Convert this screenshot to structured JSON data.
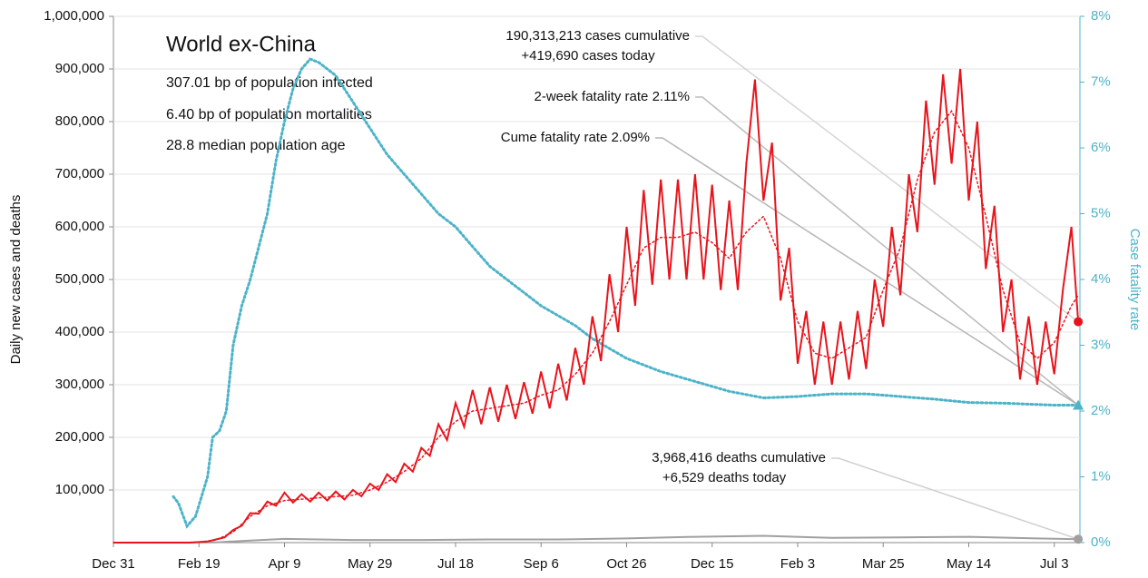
{
  "chart_data": {
    "type": "line",
    "title": "World ex-China",
    "info": [
      "307.01 bp of population infected",
      "6.40 bp of population mortalities",
      "28.8 median population age"
    ],
    "ylabel": "Daily new cases and deaths",
    "y2label": "Case fatality rate",
    "annotations": [
      {
        "lines": [
          "190,313,213 cases cumulative",
          "+419,690 cases today"
        ],
        "target": 0
      },
      {
        "lines": [
          "2-week fatality rate 2.11%"
        ],
        "target": 2
      },
      {
        "lines": [
          "Cume fatality rate 2.09%"
        ],
        "target": 2
      },
      {
        "lines": [
          "3,968,416 deaths cumulative",
          "+6,529 deaths today"
        ],
        "target": 3
      }
    ],
    "xlim": [
      0,
      565
    ],
    "xticks": [
      {
        "value": 0,
        "label": "Dec 31"
      },
      {
        "value": 50,
        "label": "Feb 19"
      },
      {
        "value": 100,
        "label": "Apr 9"
      },
      {
        "value": 150,
        "label": "May 29"
      },
      {
        "value": 200,
        "label": "Jul 18"
      },
      {
        "value": 250,
        "label": "Sep 6"
      },
      {
        "value": 300,
        "label": "Oct 26"
      },
      {
        "value": 350,
        "label": "Dec 15"
      },
      {
        "value": 400,
        "label": "Feb 3"
      },
      {
        "value": 450,
        "label": "Mar 25"
      },
      {
        "value": 500,
        "label": "May 14"
      },
      {
        "value": 550,
        "label": "Jul 3"
      }
    ],
    "ylim": [
      0,
      1000000
    ],
    "yticks": [
      {
        "value": 100000,
        "label": "100,000"
      },
      {
        "value": 200000,
        "label": "200,000"
      },
      {
        "value": 300000,
        "label": "300,000"
      },
      {
        "value": 400000,
        "label": "400,000"
      },
      {
        "value": 500000,
        "label": "500,000"
      },
      {
        "value": 600000,
        "label": "600,000"
      },
      {
        "value": 700000,
        "label": "700,000"
      },
      {
        "value": 800000,
        "label": "800,000"
      },
      {
        "value": 900000,
        "label": "900,000"
      },
      {
        "value": 1000000,
        "label": "1,000,000"
      }
    ],
    "y2lim": [
      0,
      8
    ],
    "y2ticks": [
      {
        "value": 0,
        "label": "0%"
      },
      {
        "value": 1,
        "label": "1%"
      },
      {
        "value": 2,
        "label": "2%"
      },
      {
        "value": 3,
        "label": "3%"
      },
      {
        "value": 4,
        "label": "4%"
      },
      {
        "value": 5,
        "label": "5%"
      },
      {
        "value": 6,
        "label": "6%"
      },
      {
        "value": 7,
        "label": "7%"
      },
      {
        "value": 8,
        "label": "8%"
      }
    ],
    "series": [
      {
        "color": "#e8141c",
        "style": "solid",
        "marker": "circle",
        "x": [
          0,
          5,
          10,
          15,
          20,
          25,
          30,
          35,
          40,
          45,
          50,
          55,
          60,
          65,
          70,
          75,
          80,
          85,
          90,
          95,
          100,
          105,
          110,
          115,
          120,
          125,
          130,
          135,
          140,
          145,
          150,
          155,
          160,
          165,
          170,
          175,
          180,
          185,
          190,
          195,
          200,
          205,
          210,
          215,
          220,
          225,
          230,
          235,
          240,
          245,
          250,
          255,
          260,
          265,
          270,
          275,
          280,
          285,
          290,
          295,
          300,
          305,
          310,
          315,
          320,
          325,
          330,
          335,
          340,
          345,
          350,
          355,
          360,
          365,
          370,
          375,
          380,
          385,
          390,
          395,
          400,
          405,
          410,
          415,
          420,
          425,
          430,
          435,
          440,
          445,
          450,
          455,
          460,
          465,
          470,
          475,
          480,
          485,
          490,
          495,
          500,
          505,
          510,
          515,
          520,
          525,
          530,
          535,
          540,
          545,
          550,
          555,
          560,
          564
        ],
        "values": [
          0,
          0,
          0,
          0,
          0,
          0,
          0,
          0,
          0,
          0,
          1000,
          2000,
          6000,
          10000,
          24000,
          32000,
          56000,
          55000,
          78000,
          70000,
          95000,
          76000,
          92000,
          78000,
          95000,
          80000,
          97000,
          82000,
          100000,
          88000,
          112000,
          100000,
          130000,
          115000,
          150000,
          135000,
          180000,
          165000,
          225000,
          195000,
          265000,
          220000,
          290000,
          225000,
          295000,
          230000,
          300000,
          235000,
          305000,
          245000,
          325000,
          255000,
          340000,
          270000,
          370000,
          300000,
          430000,
          345000,
          510000,
          400000,
          600000,
          450000,
          670000,
          490000,
          690000,
          500000,
          690000,
          500000,
          700000,
          500000,
          680000,
          480000,
          650000,
          480000,
          720000,
          880000,
          650000,
          760000,
          460000,
          560000,
          340000,
          440000,
          300000,
          420000,
          300000,
          420000,
          310000,
          440000,
          330000,
          500000,
          410000,
          600000,
          470000,
          700000,
          590000,
          840000,
          680000,
          890000,
          720000,
          900000,
          650000,
          800000,
          520000,
          640000,
          400000,
          500000,
          310000,
          430000,
          300000,
          420000,
          320000,
          480000,
          600000,
          419690
        ]
      },
      {
        "color": "#e8141c",
        "style": "dotted",
        "x": [
          0,
          40,
          50,
          60,
          70,
          80,
          90,
          100,
          120,
          140,
          150,
          160,
          170,
          180,
          190,
          200,
          210,
          220,
          230,
          240,
          250,
          260,
          270,
          280,
          290,
          300,
          310,
          320,
          330,
          340,
          350,
          360,
          370,
          380,
          390,
          400,
          410,
          420,
          430,
          440,
          450,
          460,
          470,
          480,
          490,
          500,
          510,
          520,
          530,
          540,
          550,
          560,
          564
        ],
        "values": [
          0,
          0,
          1000,
          5000,
          20000,
          50000,
          70000,
          80000,
          85000,
          90000,
          100000,
          115000,
          135000,
          160000,
          200000,
          230000,
          250000,
          255000,
          260000,
          265000,
          280000,
          290000,
          320000,
          360000,
          420000,
          490000,
          560000,
          580000,
          580000,
          590000,
          570000,
          540000,
          590000,
          620000,
          540000,
          420000,
          360000,
          350000,
          370000,
          390000,
          480000,
          560000,
          690000,
          780000,
          820000,
          750000,
          620000,
          480000,
          380000,
          350000,
          380000,
          450000,
          470000
        ]
      },
      {
        "color": "#4cb3c8",
        "style": "dotted",
        "axis": "y2",
        "marker": "triangle",
        "x": [
          35,
          38,
          43,
          48,
          55,
          58,
          62,
          66,
          70,
          75,
          80,
          85,
          90,
          95,
          100,
          105,
          110,
          115,
          120,
          125,
          130,
          140,
          150,
          160,
          170,
          180,
          190,
          200,
          210,
          220,
          230,
          240,
          250,
          260,
          270,
          280,
          290,
          300,
          320,
          340,
          360,
          380,
          400,
          420,
          440,
          460,
          480,
          500,
          520,
          540,
          550,
          564
        ],
        "values": [
          0.7,
          0.6,
          0.25,
          0.4,
          1.0,
          1.6,
          1.7,
          2.0,
          3.0,
          3.6,
          4.0,
          4.5,
          5.0,
          5.8,
          6.4,
          6.9,
          7.2,
          7.35,
          7.3,
          7.2,
          7.1,
          6.7,
          6.3,
          5.9,
          5.6,
          5.3,
          5.0,
          4.8,
          4.5,
          4.2,
          4.0,
          3.8,
          3.6,
          3.45,
          3.3,
          3.1,
          2.95,
          2.8,
          2.6,
          2.45,
          2.3,
          2.2,
          2.22,
          2.26,
          2.26,
          2.22,
          2.18,
          2.13,
          2.12,
          2.1,
          2.09,
          2.09
        ]
      },
      {
        "color": "#a0a0a0",
        "style": "solid",
        "marker": "circle",
        "x": [
          0,
          60,
          80,
          100,
          140,
          180,
          220,
          260,
          300,
          340,
          380,
          420,
          460,
          500,
          540,
          564
        ],
        "values": [
          0,
          500,
          4000,
          7000,
          5000,
          5000,
          6000,
          6000,
          8000,
          11000,
          13000,
          9000,
          10000,
          11000,
          8000,
          6529
        ]
      }
    ]
  }
}
